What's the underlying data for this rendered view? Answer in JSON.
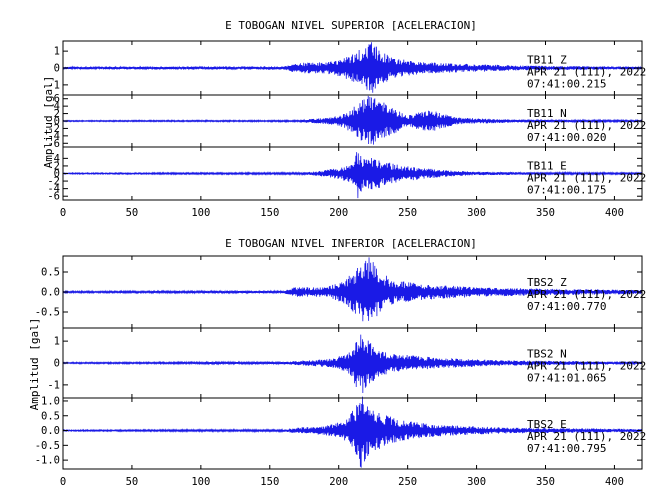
{
  "chart_data": [
    {
      "type": "line",
      "title": "E TOBOGAN NIVEL SUPERIOR [ACELERACION]",
      "ylabel": "Amplitud [gal]",
      "xlim": [
        0,
        420
      ],
      "x_ticks": [
        "0",
        "50",
        "100",
        "150",
        "200",
        "250",
        "300",
        "350",
        "400"
      ],
      "line_color": "#1a1ae6",
      "series": [
        {
          "name": "TB11 Z",
          "station": "TB11",
          "component": "Z",
          "date": "APR 21 (111), 2022",
          "time": "07:41:00.215",
          "ylim": [
            -1.6,
            1.6
          ],
          "y_ticks": [
            "1",
            "0",
            "-1"
          ],
          "noise": 0.08,
          "envelope": [
            [
              0,
              0.08
            ],
            [
              160,
              0.1
            ],
            [
              170,
              0.3
            ],
            [
              190,
              0.35
            ],
            [
              200,
              0.5
            ],
            [
              210,
              0.8
            ],
            [
              218,
              1.3
            ],
            [
              225,
              1.6
            ],
            [
              230,
              1.0
            ],
            [
              240,
              0.6
            ],
            [
              260,
              0.35
            ],
            [
              290,
              0.25
            ],
            [
              330,
              0.15
            ],
            [
              380,
              0.1
            ],
            [
              420,
              0.08
            ]
          ]
        },
        {
          "name": "TB11 N",
          "station": "TB11",
          "component": "N",
          "date": "APR 21 (111), 2022",
          "time": "07:41:00.020",
          "ylim": [
            -7,
            7
          ],
          "y_ticks": [
            "6",
            "4",
            "2",
            "0",
            "-2",
            "-4",
            "-6"
          ],
          "noise": 0.15,
          "envelope": [
            [
              0,
              0.15
            ],
            [
              170,
              0.2
            ],
            [
              180,
              0.6
            ],
            [
              195,
              1.0
            ],
            [
              205,
              2.0
            ],
            [
              215,
              5.0
            ],
            [
              222,
              7.0
            ],
            [
              230,
              5.5
            ],
            [
              240,
              3.5
            ],
            [
              250,
              1.5
            ],
            [
              260,
              2.5
            ],
            [
              268,
              3.0
            ],
            [
              275,
              2.0
            ],
            [
              285,
              1.0
            ],
            [
              300,
              0.7
            ],
            [
              330,
              0.4
            ],
            [
              380,
              0.25
            ],
            [
              420,
              0.2
            ]
          ]
        },
        {
          "name": "TB11 E",
          "station": "TB11",
          "component": "E",
          "date": "APR 21 (111), 2022",
          "time": "07:41:00.175",
          "ylim": [
            -7,
            7
          ],
          "y_ticks": [
            "4",
            "2",
            "0",
            "-2",
            "-4",
            "-6"
          ],
          "noise": 0.15,
          "envelope": [
            [
              0,
              0.15
            ],
            [
              170,
              0.25
            ],
            [
              185,
              0.6
            ],
            [
              200,
              1.5
            ],
            [
              210,
              2.5
            ],
            [
              214,
              7.0
            ],
            [
              218,
              4.0
            ],
            [
              225,
              4.5
            ],
            [
              235,
              3.0
            ],
            [
              245,
              2.2
            ],
            [
              260,
              1.5
            ],
            [
              280,
              0.8
            ],
            [
              300,
              0.5
            ],
            [
              340,
              0.3
            ],
            [
              420,
              0.2
            ]
          ]
        }
      ]
    },
    {
      "type": "line",
      "title": "E TOBOGAN NIVEL INFERIOR [ACELERACION]",
      "ylabel": "Amplitud [gal]",
      "xlim": [
        0,
        420
      ],
      "x_ticks": [
        "0",
        "50",
        "100",
        "150",
        "200",
        "250",
        "300",
        "350",
        "400"
      ],
      "line_color": "#1a1ae6",
      "series": [
        {
          "name": "TBS2 Z",
          "station": "TBS2",
          "component": "Z",
          "date": "APR 21 (111), 2022",
          "time": "07:41:00.770",
          "ylim": [
            -0.9,
            0.9
          ],
          "y_ticks": [
            "0.5",
            "0.0",
            "-0.5"
          ],
          "noise": 0.02,
          "envelope": [
            [
              0,
              0.02
            ],
            [
              160,
              0.03
            ],
            [
              168,
              0.12
            ],
            [
              190,
              0.12
            ],
            [
              205,
              0.3
            ],
            [
              215,
              0.7
            ],
            [
              222,
              0.9
            ],
            [
              230,
              0.5
            ],
            [
              240,
              0.3
            ],
            [
              260,
              0.2
            ],
            [
              300,
              0.12
            ],
            [
              350,
              0.08
            ],
            [
              420,
              0.05
            ]
          ]
        },
        {
          "name": "TBS2 N",
          "station": "TBS2",
          "component": "N",
          "date": "APR 21 (111), 2022",
          "time": "07:41:01.065",
          "ylim": [
            -1.6,
            1.6
          ],
          "y_ticks": [
            "1",
            "0",
            "-1"
          ],
          "noise": 0.03,
          "envelope": [
            [
              0,
              0.03
            ],
            [
              160,
              0.05
            ],
            [
              175,
              0.12
            ],
            [
              195,
              0.2
            ],
            [
              208,
              0.5
            ],
            [
              215,
              1.6
            ],
            [
              222,
              1.0
            ],
            [
              230,
              0.6
            ],
            [
              245,
              0.4
            ],
            [
              270,
              0.25
            ],
            [
              320,
              0.12
            ],
            [
              420,
              0.06
            ]
          ]
        },
        {
          "name": "TBS2 E",
          "station": "TBS2",
          "component": "E",
          "date": "APR 21 (111), 2022",
          "time": "07:41:00.795",
          "ylim": [
            -1.3,
            1.1
          ],
          "y_ticks": [
            "1.0",
            "0.5",
            "0.0",
            "-0.5",
            "-1.0"
          ],
          "noise": 0.02,
          "envelope": [
            [
              0,
              0.02
            ],
            [
              160,
              0.04
            ],
            [
              170,
              0.1
            ],
            [
              190,
              0.15
            ],
            [
              205,
              0.35
            ],
            [
              212,
              0.8
            ],
            [
              216,
              1.3
            ],
            [
              222,
              0.9
            ],
            [
              230,
              0.6
            ],
            [
              245,
              0.35
            ],
            [
              270,
              0.2
            ],
            [
              320,
              0.1
            ],
            [
              420,
              0.05
            ]
          ]
        }
      ]
    }
  ]
}
